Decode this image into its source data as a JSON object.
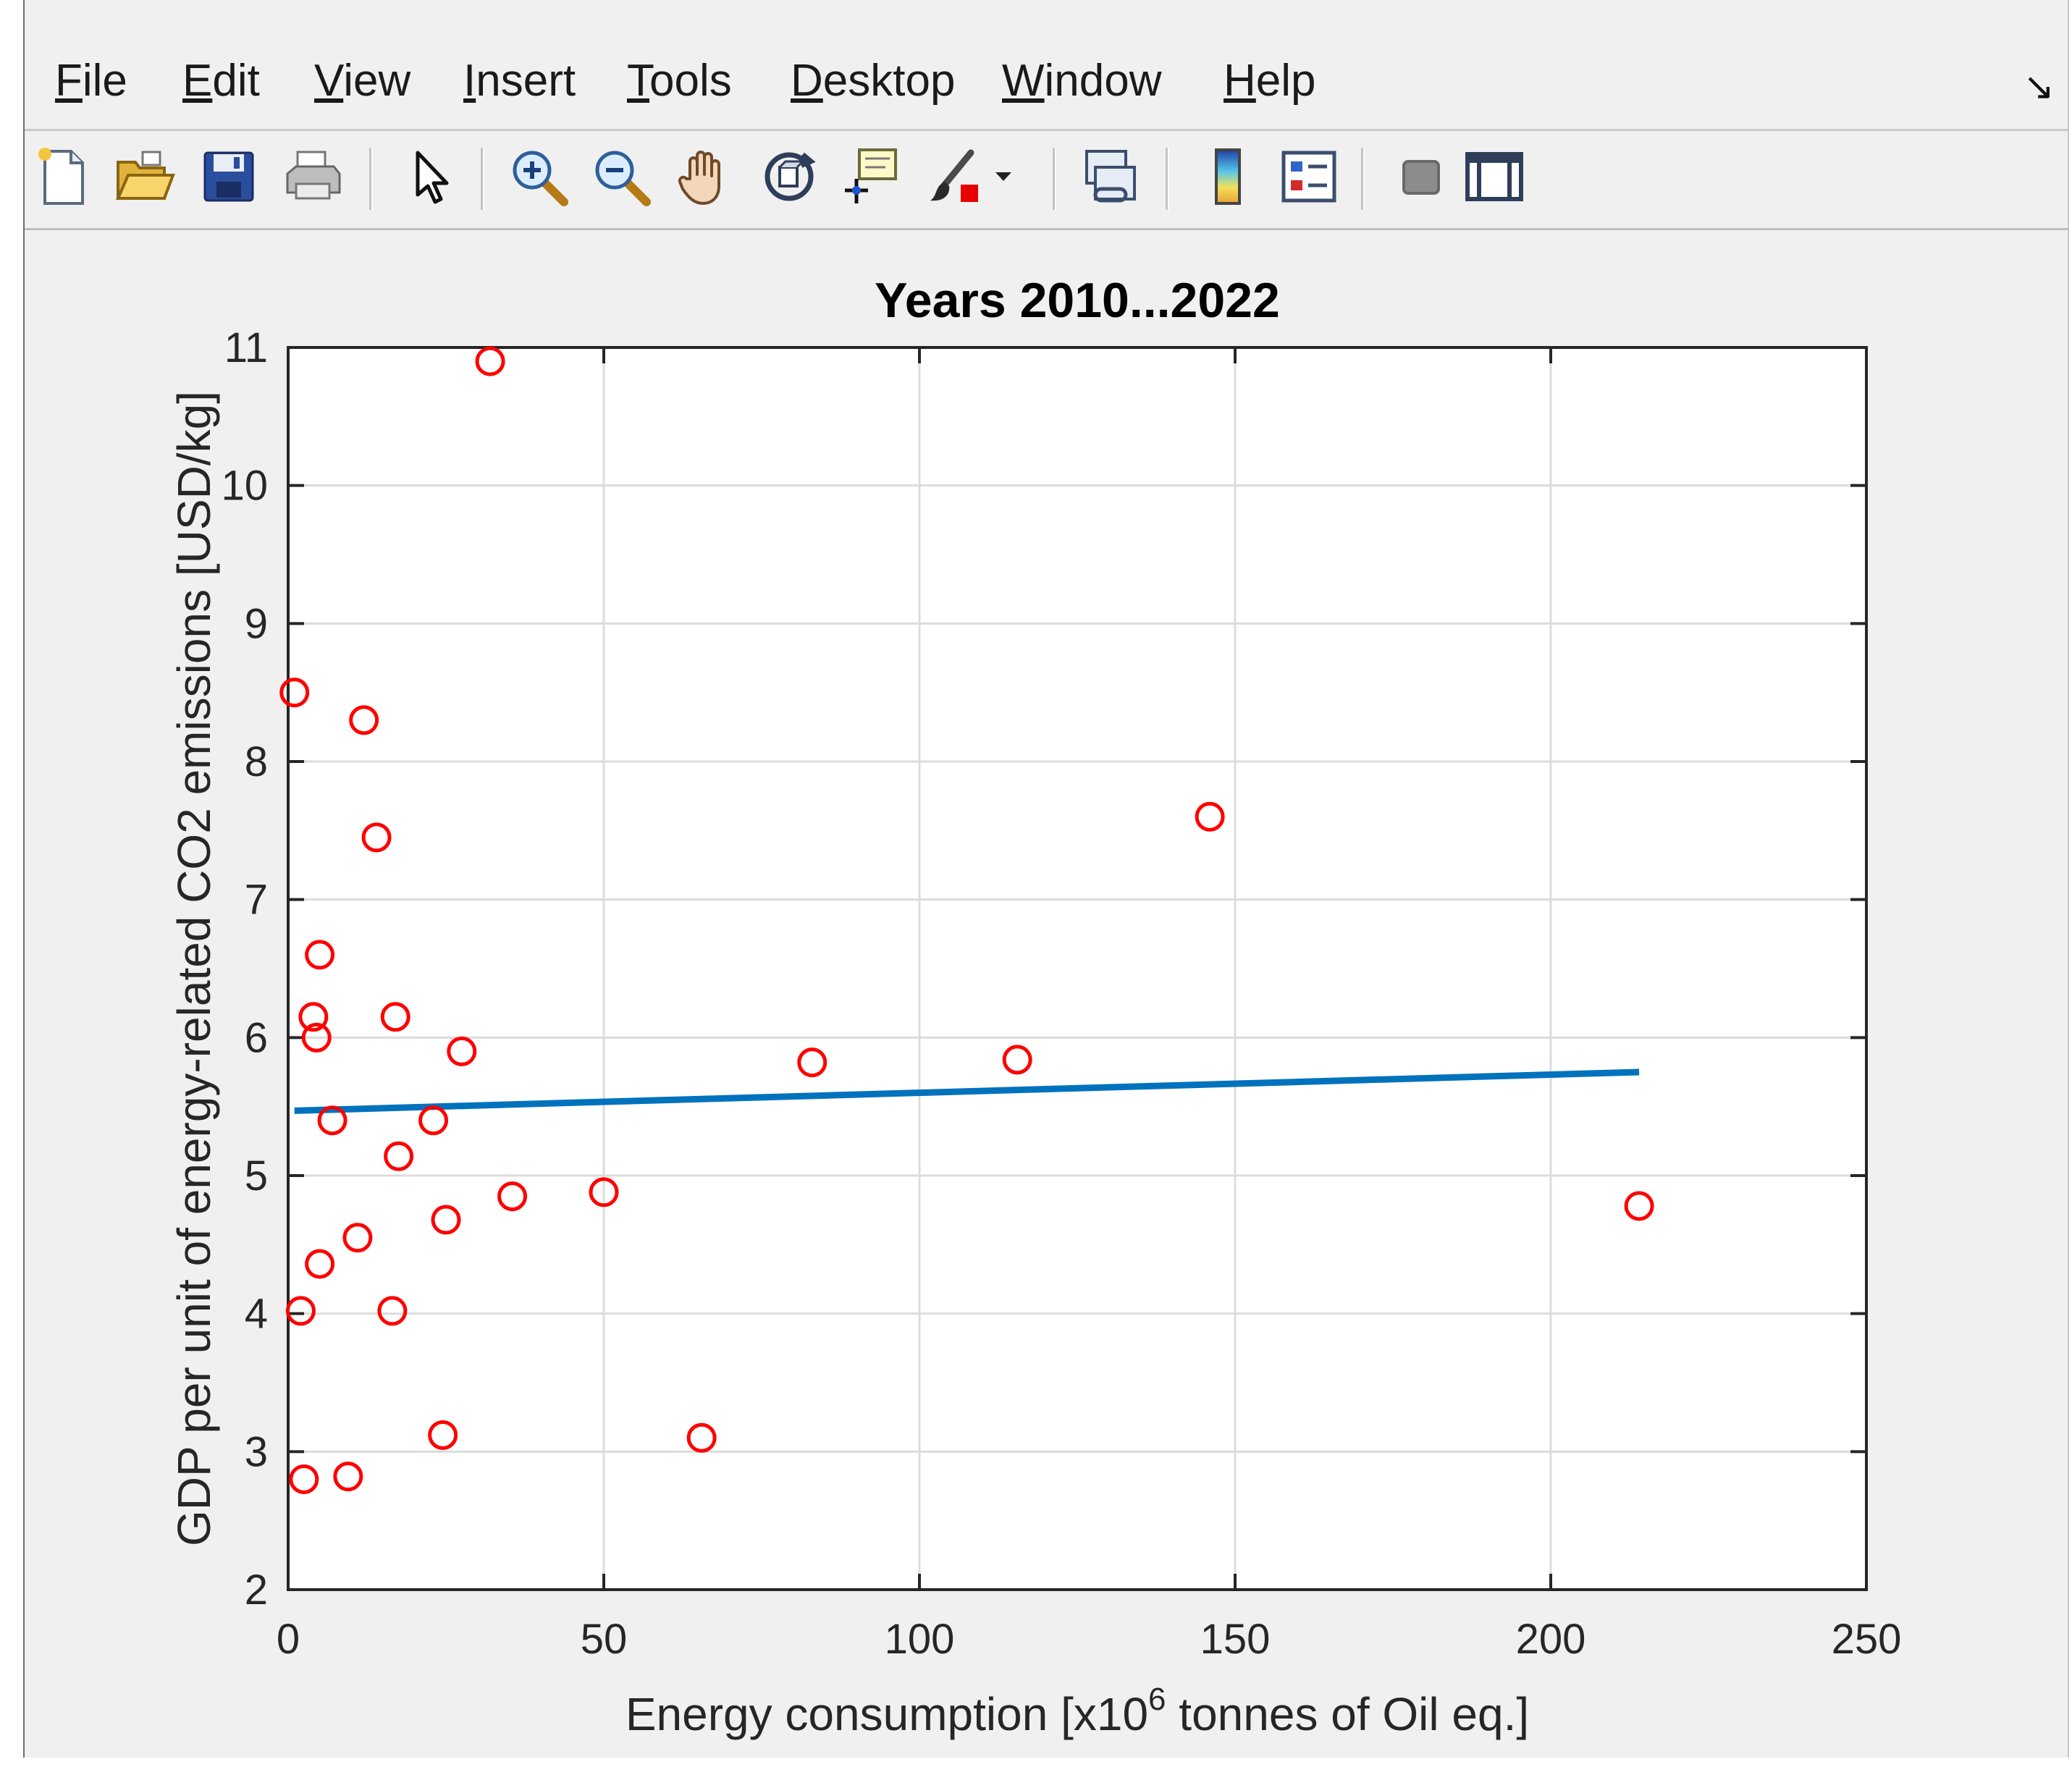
{
  "menu": {
    "items": [
      {
        "label": "File",
        "underline": "F",
        "rest": "ile"
      },
      {
        "label": "Edit",
        "underline": "E",
        "rest": "dit"
      },
      {
        "label": "View",
        "underline": "V",
        "rest": "iew"
      },
      {
        "label": "Insert",
        "underline": "I",
        "rest": "nsert"
      },
      {
        "label": "Tools",
        "underline": "T",
        "rest": "ools"
      },
      {
        "label": "Desktop",
        "underline": "D",
        "rest": "esktop"
      },
      {
        "label": "Window",
        "underline": "W",
        "rest": "indow"
      },
      {
        "label": "Help",
        "underline": "H",
        "rest": "elp"
      }
    ],
    "dock_icon": "↘"
  },
  "toolbar": {
    "buttons": [
      "new-figure-icon",
      "open-file-icon",
      "save-icon",
      "print-icon",
      "edit-plot-arrow-icon",
      "zoom-in-icon",
      "zoom-out-icon",
      "pan-hand-icon",
      "rotate-3d-icon",
      "data-cursor-icon",
      "brush-icon",
      "brush-dropdown-icon",
      "link-plot-icon",
      "colorbar-icon",
      "legend-icon",
      "hide-plot-tools-icon",
      "show-plot-tools-icon"
    ]
  },
  "chart_data": {
    "type": "scatter",
    "title": "Years 2010...2022",
    "xlabel_prefix": "Energy consumption [x10",
    "xlabel_sup": "6",
    "xlabel_suffix": " tonnes of Oil eq.]",
    "ylabel": "GDP per unit of energy-related CO2 emissions [USD/kg]",
    "xlim": [
      0,
      250
    ],
    "ylim": [
      2,
      11
    ],
    "xticks": [
      0,
      50,
      100,
      150,
      200,
      250
    ],
    "yticks": [
      2,
      3,
      4,
      5,
      6,
      7,
      8,
      9,
      10,
      11
    ],
    "grid": true,
    "marker_color": "#ff0000",
    "line_color": "#0072bd",
    "points": [
      {
        "x": 32,
        "y": 10.9
      },
      {
        "x": 1,
        "y": 8.5
      },
      {
        "x": 12,
        "y": 8.3
      },
      {
        "x": 146,
        "y": 7.6
      },
      {
        "x": 14,
        "y": 7.45
      },
      {
        "x": 5,
        "y": 6.6
      },
      {
        "x": 4,
        "y": 6.15
      },
      {
        "x": 17,
        "y": 6.15
      },
      {
        "x": 4.5,
        "y": 6.0
      },
      {
        "x": 27.5,
        "y": 5.9
      },
      {
        "x": 83,
        "y": 5.82
      },
      {
        "x": 115.5,
        "y": 5.84
      },
      {
        "x": 7,
        "y": 5.4
      },
      {
        "x": 23,
        "y": 5.4
      },
      {
        "x": 17.5,
        "y": 5.14
      },
      {
        "x": 35.5,
        "y": 4.85
      },
      {
        "x": 50,
        "y": 4.88
      },
      {
        "x": 214,
        "y": 4.78
      },
      {
        "x": 25,
        "y": 4.68
      },
      {
        "x": 11,
        "y": 4.55
      },
      {
        "x": 5,
        "y": 4.36
      },
      {
        "x": 2,
        "y": 4.02
      },
      {
        "x": 16.5,
        "y": 4.02
      },
      {
        "x": 24.5,
        "y": 3.12
      },
      {
        "x": 65.5,
        "y": 3.1
      },
      {
        "x": 2.5,
        "y": 2.8
      },
      {
        "x": 9.5,
        "y": 2.82
      }
    ],
    "fit_line": {
      "x": [
        1,
        214
      ],
      "y": [
        5.47,
        5.75
      ]
    }
  }
}
